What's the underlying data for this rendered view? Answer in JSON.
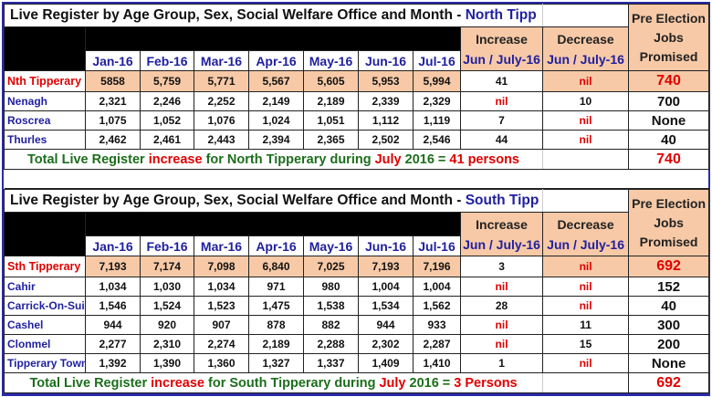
{
  "north": {
    "title_prefix": "Live Register by Age Group, Sex, Social Welfare Office and Month - ",
    "title_region": "North Tipp",
    "months": [
      "Jan-16",
      "Feb-16",
      "Mar-16",
      "Apr-16",
      "May-16",
      "Jun-16",
      "Jul-16"
    ],
    "increase_header": [
      "Increase",
      "Jun / July-16"
    ],
    "decrease_header": [
      "Decrease",
      "Jun / July-16"
    ],
    "jobs_header": [
      "Pre Election",
      "Jobs",
      "Promised"
    ],
    "rows": [
      {
        "label": "Nth Tipperary",
        "values": [
          "5858",
          "5,759",
          "5,771",
          "5,567",
          "5,605",
          "5,953",
          "5,994"
        ],
        "increase": "41",
        "decrease": "nil",
        "jobs": "740"
      },
      {
        "label": "Nenagh",
        "values": [
          "2,321",
          "2,246",
          "2,252",
          "2,149",
          "2,189",
          "2,339",
          "2,329"
        ],
        "increase": "nil",
        "decrease": "10",
        "jobs": "700"
      },
      {
        "label": "Roscrea",
        "values": [
          "1,075",
          "1,052",
          "1,076",
          "1,024",
          "1,051",
          "1,112",
          "1,119"
        ],
        "increase": "7",
        "decrease": "nil",
        "jobs": "None"
      },
      {
        "label": "Thurles",
        "values": [
          "2,462",
          "2,461",
          "2,443",
          "2,394",
          "2,365",
          "2,502",
          "2,546"
        ],
        "increase": "44",
        "decrease": "nil",
        "jobs": "40"
      }
    ],
    "total": {
      "p1": "Total Live Register ",
      "p2": "increase",
      "p3": " for North Tipperary during ",
      "p4": "July",
      "p5": " 2016 = ",
      "p6": "41 persons",
      "jobs": "740"
    }
  },
  "south": {
    "title_prefix": "Live Register by Age Group, Sex, Social Welfare Office and Month - ",
    "title_region": "South Tipp",
    "months": [
      "Jan-16",
      "Feb-16",
      "Mar-16",
      "Apr-16",
      "May-16",
      "Jun-16",
      "Jul-16"
    ],
    "increase_header": [
      "Increase",
      "Jun / July-16"
    ],
    "decrease_header": [
      "Decrease",
      "Jun / July-16"
    ],
    "jobs_header": [
      "Pre Election",
      "Jobs",
      "Promised"
    ],
    "rows": [
      {
        "label": "Sth Tipperary",
        "values": [
          "7,193",
          "7,174",
          "7,098",
          "6,840",
          "7,025",
          "7,193",
          "7,196"
        ],
        "increase": "3",
        "decrease": "nil",
        "jobs": "692"
      },
      {
        "label": "Cahir",
        "values": [
          "1,034",
          "1,030",
          "1,034",
          "971",
          "980",
          "1,004",
          "1,004"
        ],
        "increase": "nil",
        "decrease": "nil",
        "jobs": "152"
      },
      {
        "label": "Carrick-On-Suir",
        "values": [
          "1,546",
          "1,524",
          "1,523",
          "1,475",
          "1,538",
          "1,534",
          "1,562"
        ],
        "increase": "28",
        "decrease": "nil",
        "jobs": "40"
      },
      {
        "label": "Cashel",
        "values": [
          "944",
          "920",
          "907",
          "878",
          "882",
          "944",
          "933"
        ],
        "increase": "nil",
        "decrease": "11",
        "jobs": "300"
      },
      {
        "label": "Clonmel",
        "values": [
          "2,277",
          "2,310",
          "2,274",
          "2,189",
          "2,288",
          "2,302",
          "2,287"
        ],
        "increase": "nil",
        "decrease": "15",
        "jobs": "200"
      },
      {
        "label": "Tipperary Town",
        "values": [
          "1,392",
          "1,390",
          "1,360",
          "1,327",
          "1,337",
          "1,409",
          "1,410"
        ],
        "increase": "1",
        "decrease": "nil",
        "jobs": "None"
      }
    ],
    "total": {
      "p1": "Total Live Register ",
      "p2": "increase",
      "p3": " for South Tipperary during ",
      "p4": "July",
      "p5": " 2016 = ",
      "p6": "3 Persons",
      "jobs": "692"
    }
  }
}
